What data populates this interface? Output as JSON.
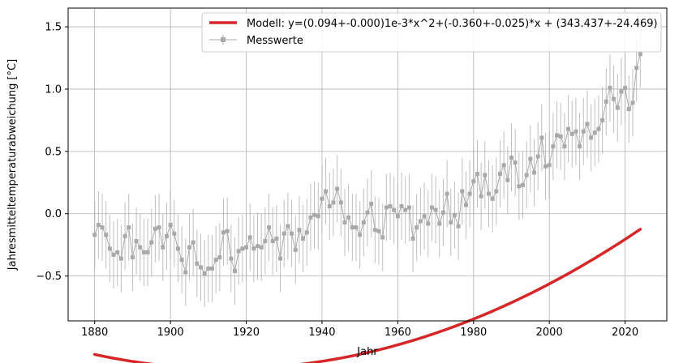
{
  "chart_data": {
    "type": "line",
    "xlabel": "Jahr",
    "ylabel": "Jahresmitteltemperaturabweichung [°C]",
    "xlim": [
      1873,
      2031
    ],
    "ylim": [
      -0.86,
      1.65
    ],
    "xticks": [
      1880,
      1900,
      1920,
      1940,
      1960,
      1980,
      2000,
      2020
    ],
    "yticks": [
      -0.5,
      0.0,
      0.5,
      1.0,
      1.5
    ],
    "ytick_labels": [
      "−0.5",
      "0.0",
      "0.5",
      "1.0",
      "1.5"
    ],
    "grid": true,
    "legend_position": "top-right",
    "colors": {
      "model": "#d62728",
      "measured": "#a9a9a9",
      "grid": "#b0b0b0"
    },
    "model": {
      "name": "Modell: y=(0.094+-0.000)1e-3*x^2+(-0.360+-0.025)*x + (343.437+-24.469)",
      "a": 9.4e-05,
      "b": -0.36,
      "c": 343.437,
      "x_range": [
        1880,
        2024
      ]
    },
    "measured": {
      "name": "Messwerte",
      "x_start": 1880,
      "values": [
        -0.17,
        -0.09,
        -0.11,
        -0.17,
        -0.28,
        -0.33,
        -0.31,
        -0.36,
        -0.18,
        -0.11,
        -0.35,
        -0.22,
        -0.27,
        -0.31,
        -0.31,
        -0.23,
        -0.12,
        -0.11,
        -0.27,
        -0.18,
        -0.09,
        -0.16,
        -0.28,
        -0.37,
        -0.47,
        -0.27,
        -0.23,
        -0.4,
        -0.43,
        -0.48,
        -0.44,
        -0.44,
        -0.37,
        -0.35,
        -0.15,
        -0.14,
        -0.36,
        -0.46,
        -0.3,
        -0.28,
        -0.27,
        -0.19,
        -0.28,
        -0.26,
        -0.27,
        -0.22,
        -0.11,
        -0.22,
        -0.2,
        -0.36,
        -0.16,
        -0.1,
        -0.16,
        -0.29,
        -0.13,
        -0.2,
        -0.15,
        -0.03,
        -0.01,
        -0.02,
        0.12,
        0.18,
        0.06,
        0.09,
        0.2,
        0.09,
        -0.07,
        -0.03,
        -0.11,
        -0.11,
        -0.17,
        -0.07,
        0.01,
        0.08,
        -0.13,
        -0.14,
        -0.19,
        0.05,
        0.06,
        0.03,
        -0.02,
        0.06,
        0.03,
        0.05,
        -0.2,
        -0.11,
        -0.06,
        -0.02,
        -0.08,
        0.05,
        0.03,
        -0.08,
        0.01,
        0.16,
        -0.07,
        -0.01,
        -0.1,
        0.18,
        0.07,
        0.16,
        0.26,
        0.32,
        0.14,
        0.31,
        0.16,
        0.12,
        0.18,
        0.32,
        0.39,
        0.27,
        0.45,
        0.41,
        0.22,
        0.23,
        0.31,
        0.44,
        0.33,
        0.46,
        0.61,
        0.38,
        0.39,
        0.54,
        0.63,
        0.62,
        0.54,
        0.68,
        0.64,
        0.66,
        0.54,
        0.66,
        0.72,
        0.61,
        0.65,
        0.68,
        0.75,
        0.9,
        1.01,
        0.92,
        0.85,
        0.98,
        1.01,
        0.84,
        0.89,
        1.17,
        1.28
      ],
      "error_bar": 0.27
    }
  }
}
